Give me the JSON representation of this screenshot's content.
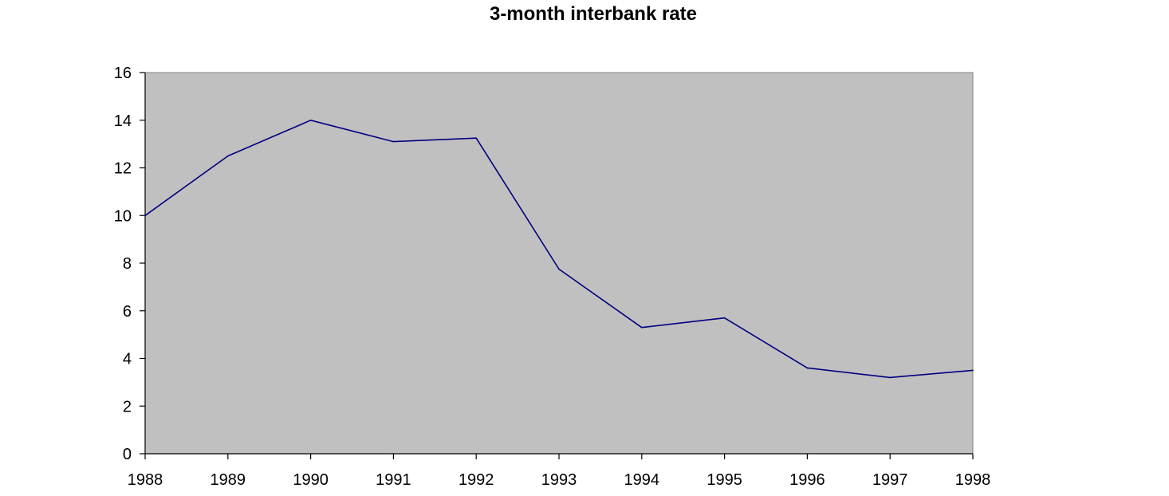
{
  "chart_data": {
    "type": "line",
    "title": "3-month interbank rate",
    "xlabel": "",
    "ylabel": "",
    "categories": [
      "1988",
      "1989",
      "1990",
      "1991",
      "1992",
      "1993",
      "1994",
      "1995",
      "1996",
      "1997",
      "1998"
    ],
    "series": [
      {
        "values": [
          10.0,
          12.5,
          14.0,
          13.1,
          13.25,
          7.75,
          5.3,
          5.7,
          3.6,
          3.2,
          3.5
        ]
      }
    ],
    "ylim": [
      0,
      16
    ],
    "yticks": [
      0,
      2,
      4,
      6,
      8,
      10,
      12,
      14,
      16
    ],
    "grid": false,
    "legend": "none",
    "colors": {
      "plot_background": "#c0c0c0",
      "line": "#000080",
      "axis": "#000000",
      "frame": "#808080"
    }
  }
}
